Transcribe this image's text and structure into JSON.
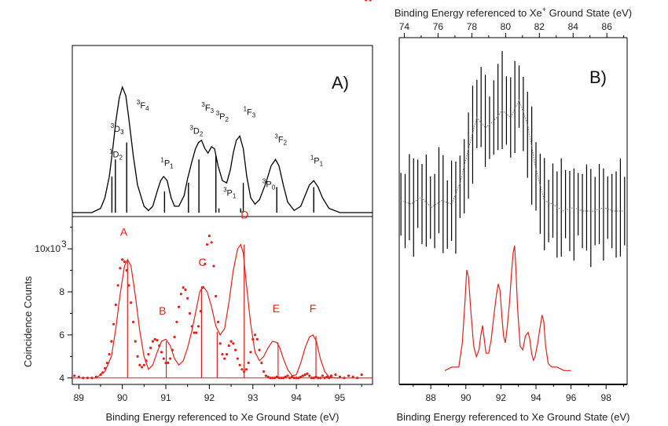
{
  "chart_data": [
    {
      "type": "line",
      "panel_label": "A)",
      "subplot": "top",
      "xlim": [
        88.85,
        95.75
      ],
      "series": [
        {
          "color": "#000000",
          "x": [
            88.85,
            89.3,
            89.5,
            89.6,
            89.7,
            89.78,
            89.85,
            89.93,
            90.0,
            90.08,
            90.15,
            90.25,
            90.35,
            90.5,
            90.6,
            90.7,
            90.8,
            90.88,
            90.95,
            91.03,
            91.12,
            91.2,
            91.3,
            91.42,
            91.5,
            91.6,
            91.68,
            91.75,
            91.82,
            91.9,
            91.97,
            92.05,
            92.12,
            92.2,
            92.3,
            92.4,
            92.48,
            92.55,
            92.62,
            92.7,
            92.78,
            92.86,
            92.95,
            93.05,
            93.15,
            93.3,
            93.42,
            93.52,
            93.6,
            93.7,
            93.8,
            93.95,
            94.1,
            94.2,
            94.3,
            94.4,
            94.5,
            94.6,
            94.75,
            95.0,
            95.3,
            95.75
          ],
          "y": [
            0,
            0,
            0.02,
            0.07,
            0.17,
            0.3,
            0.43,
            0.54,
            0.59,
            0.55,
            0.44,
            0.27,
            0.13,
            0.03,
            0.01,
            0.03,
            0.1,
            0.15,
            0.17,
            0.15,
            0.07,
            0.03,
            0.03,
            0.08,
            0.16,
            0.24,
            0.3,
            0.33,
            0.34,
            0.3,
            0.28,
            0.31,
            0.3,
            0.22,
            0.15,
            0.14,
            0.2,
            0.28,
            0.34,
            0.36,
            0.3,
            0.17,
            0.07,
            0.04,
            0.06,
            0.14,
            0.22,
            0.25,
            0.22,
            0.13,
            0.05,
            0.01,
            0.03,
            0.08,
            0.13,
            0.15,
            0.12,
            0.07,
            0.02,
            0,
            0,
            0
          ]
        }
      ],
      "stick_x": [
        89.76,
        89.84,
        90.1,
        90.97,
        91.52,
        91.76,
        92.15,
        92.22,
        92.72,
        92.78,
        93.55,
        94.4
      ],
      "stick_y": [
        0.17,
        0.25,
        0.33,
        0.1,
        0.14,
        0.25,
        0.27,
        0.02,
        0.02,
        0.14,
        0.12,
        0.12
      ],
      "term_labels": [
        {
          "sup": "1",
          "base": "D",
          "sub": "2",
          "x": 89.7,
          "y": 0.26
        },
        {
          "sup": "3",
          "base": "D",
          "sub": "3",
          "x": 89.73,
          "y": 0.38
        },
        {
          "sup": "3",
          "base": "F",
          "sub": "4",
          "x": 90.33,
          "y": 0.49
        },
        {
          "sup": "1",
          "base": "P",
          "sub": "1",
          "x": 90.88,
          "y": 0.22
        },
        {
          "sup": "3",
          "base": "D",
          "sub": "2",
          "x": 91.55,
          "y": 0.37
        },
        {
          "sup": "3",
          "base": "F",
          "sub": "3",
          "x": 91.82,
          "y": 0.48
        },
        {
          "sup": "3",
          "base": "P",
          "sub": "2",
          "x": 92.15,
          "y": 0.44
        },
        {
          "sup": "3",
          "base": "P",
          "sub": "1",
          "x": 92.32,
          "y": 0.08
        },
        {
          "sup": "1",
          "base": "F",
          "sub": "3",
          "x": 92.78,
          "y": 0.46
        },
        {
          "sup": "3",
          "base": "P",
          "sub": "0",
          "x": 93.22,
          "y": 0.12
        },
        {
          "sup": "3",
          "base": "F",
          "sub": "2",
          "x": 93.5,
          "y": 0.33
        },
        {
          "sup": "1",
          "base": "P",
          "sub": "1",
          "x": 94.32,
          "y": 0.23
        }
      ]
    },
    {
      "type": "scatter",
      "subplot": "bottom",
      "xlabel": "Binding Energy referenced to Xe Ground State (eV)",
      "ylabel": "Coincidence Counts",
      "xlim": [
        88.85,
        95.75
      ],
      "ylim": [
        3700,
        11500
      ],
      "xticks": [
        89,
        90,
        91,
        92,
        93,
        94,
        95
      ],
      "yticks": [
        4000,
        6000,
        8000,
        10000
      ],
      "ytick_labels": [
        "4",
        "6",
        "8",
        "10x10"
      ],
      "ytick_label_superscript": "3",
      "color": "#e3201b",
      "points_x": [
        88.9,
        89.0,
        89.1,
        89.2,
        89.3,
        89.4,
        89.5,
        89.55,
        89.6,
        89.65,
        89.7,
        89.75,
        89.8,
        89.85,
        89.9,
        89.95,
        90.0,
        90.05,
        90.1,
        90.15,
        90.2,
        90.25,
        90.3,
        90.35,
        90.4,
        90.45,
        90.5,
        90.55,
        90.6,
        90.65,
        90.7,
        90.75,
        90.8,
        90.85,
        90.9,
        90.95,
        91.0,
        91.05,
        91.1,
        91.15,
        91.2,
        91.25,
        91.3,
        91.35,
        91.4,
        91.45,
        91.5,
        91.55,
        91.6,
        91.65,
        91.7,
        91.75,
        91.8,
        91.85,
        91.9,
        91.95,
        92.0,
        92.05,
        92.1,
        92.15,
        92.2,
        92.25,
        92.3,
        92.35,
        92.4,
        92.45,
        92.5,
        92.55,
        92.6,
        92.65,
        92.7,
        92.75,
        92.8,
        92.85,
        92.9,
        92.95,
        93.0,
        93.05,
        93.1,
        93.15,
        93.2,
        93.25,
        93.3,
        93.35,
        93.4,
        93.45,
        93.5,
        93.55,
        93.6,
        93.65,
        93.7,
        93.75,
        93.8,
        93.85,
        93.9,
        93.95,
        94.0,
        94.05,
        94.1,
        94.15,
        94.2,
        94.25,
        94.3,
        94.35,
        94.4,
        94.45,
        94.5,
        94.55,
        94.6,
        94.65,
        94.7,
        94.75,
        94.8,
        94.9,
        95.0,
        95.1,
        95.2,
        95.3,
        95.4,
        95.5,
        95.6,
        95.7
      ],
      "points_y": [
        4100,
        4050,
        4000,
        4000,
        4000,
        4050,
        4150,
        4250,
        4450,
        4700,
        5100,
        5700,
        6500,
        7400,
        8300,
        9100,
        9500,
        9400,
        9000,
        8300,
        7500,
        6600,
        5700,
        5000,
        4600,
        4500,
        4600,
        4800,
        5100,
        5400,
        5700,
        5800,
        5750,
        5500,
        5200,
        4900,
        4700,
        4700,
        4900,
        5300,
        5900,
        6600,
        7300,
        7900,
        8200,
        8100,
        7700,
        7000,
        6400,
        6100,
        6100,
        6400,
        7100,
        8200,
        9300,
        10200,
        10600,
        10300,
        9200,
        7800,
        6600,
        5600,
        5100,
        4900,
        5100,
        5500,
        5700,
        5600,
        5300,
        4900,
        4600,
        4400,
        4300,
        4400,
        4700,
        5200,
        5800,
        6000,
        5800,
        5300,
        4700,
        4300,
        4100,
        4050,
        4000,
        4000,
        4000,
        4050,
        4000,
        4000,
        4000,
        4050,
        4100,
        4000,
        4050,
        4000,
        4000,
        4000,
        4050,
        4100,
        4150,
        4200,
        4100,
        4000,
        4000,
        4050,
        4000,
        4000,
        4100,
        4000,
        4050,
        4000,
        4100,
        4150,
        4050,
        4000,
        4100,
        4050,
        4000,
        4150
      ],
      "fit_x": [
        88.85,
        89.4,
        89.6,
        89.75,
        89.85,
        89.95,
        90.05,
        90.12,
        90.2,
        90.3,
        90.4,
        90.5,
        90.6,
        90.7,
        90.8,
        90.9,
        91.0,
        91.1,
        91.2,
        91.3,
        91.4,
        91.5,
        91.6,
        91.7,
        91.78,
        91.86,
        91.95,
        92.05,
        92.15,
        92.25,
        92.35,
        92.45,
        92.55,
        92.65,
        92.72,
        92.78,
        92.85,
        92.95,
        93.05,
        93.15,
        93.25,
        93.35,
        93.45,
        93.55,
        93.62,
        93.7,
        93.8,
        93.9,
        94.0,
        94.1,
        94.2,
        94.3,
        94.38,
        94.46,
        94.55,
        94.65,
        94.75,
        94.9,
        95.1,
        95.75
      ],
      "fit_y": [
        4000,
        4000,
        4300,
        5000,
        6300,
        7900,
        9200,
        9500,
        9200,
        7800,
        6200,
        5000,
        4400,
        4600,
        5200,
        5700,
        5800,
        5500,
        4900,
        4600,
        4800,
        5400,
        6200,
        7200,
        8000,
        8250,
        8000,
        7300,
        6400,
        6000,
        6300,
        7500,
        9000,
        10000,
        10200,
        9800,
        8400,
        6500,
        5200,
        4800,
        5000,
        5400,
        5700,
        5650,
        5400,
        4900,
        4400,
        4100,
        4150,
        4700,
        5400,
        5900,
        6000,
        5700,
        4900,
        4300,
        4050,
        4000,
        4000,
        4000
      ],
      "stick_x": [
        90.12,
        91.01,
        91.82,
        92.18,
        92.8,
        93.58,
        94.45
      ],
      "stick_y": [
        9500,
        5700,
        8250,
        6150,
        10200,
        5650,
        5950
      ],
      "peak_labels": [
        {
          "text": "A",
          "x": 89.95,
          "y": 10600
        },
        {
          "text": "B",
          "x": 90.84,
          "y": 6950
        },
        {
          "text": "C",
          "x": 91.75,
          "y": 9200
        },
        {
          "text": "D",
          "x": 92.72,
          "y": 11400
        },
        {
          "text": "E",
          "x": 93.45,
          "y": 7050
        },
        {
          "text": "F",
          "x": 94.3,
          "y": 7050
        }
      ]
    },
    {
      "type": "line",
      "panel_label": "B)",
      "xlabel": "Binding Energy referenced to Xe Ground State (eV)",
      "x2label": "Binding Energy referenced to Xe",
      "x2label_sup": "+",
      "x2label_rest": " Ground State (eV)",
      "xlim": [
        86.2,
        99.2
      ],
      "xticks": [
        88,
        90,
        92,
        94,
        96,
        98
      ],
      "x2lim": [
        73.7,
        87.2
      ],
      "x2ticks": [
        74,
        76,
        78,
        80,
        82,
        84,
        86
      ],
      "y_scale": "normalized",
      "ylim": [
        0,
        1
      ],
      "noisy_trace": {
        "color": "#000000",
        "x2": [
          73.8,
          74.05,
          74.3,
          74.55,
          74.8,
          75.05,
          75.3,
          75.55,
          75.8,
          76.05,
          76.3,
          76.55,
          76.8,
          77.05,
          77.3,
          77.55,
          77.8,
          78.05,
          78.3,
          78.55,
          78.8,
          79.05,
          79.3,
          79.55,
          79.8,
          80.05,
          80.3,
          80.55,
          80.8,
          81.05,
          81.3,
          81.55,
          81.8,
          82.05,
          82.3,
          82.55,
          82.8,
          83.05,
          83.3,
          83.55,
          83.8,
          84.05,
          84.3,
          84.55,
          84.8,
          85.05,
          85.3,
          85.55,
          85.8,
          86.05,
          86.3,
          86.55,
          86.8,
          87.05
        ],
        "center": [
          0.52,
          0.5,
          0.54,
          0.51,
          0.55,
          0.52,
          0.53,
          0.51,
          0.5,
          0.56,
          0.52,
          0.49,
          0.53,
          0.51,
          0.57,
          0.6,
          0.66,
          0.72,
          0.78,
          0.8,
          0.76,
          0.74,
          0.77,
          0.8,
          0.82,
          0.79,
          0.77,
          0.8,
          0.83,
          0.78,
          0.72,
          0.66,
          0.6,
          0.55,
          0.52,
          0.5,
          0.53,
          0.49,
          0.51,
          0.52,
          0.5,
          0.49,
          0.52,
          0.5,
          0.51,
          0.48,
          0.5,
          0.52,
          0.49,
          0.51,
          0.5,
          0.49,
          0.51,
          0.5
        ],
        "half_range": 0.12
      },
      "smooth_trace": {
        "color": "#6e6e6e",
        "x2": [
          73.8,
          74.4,
          75.0,
          75.6,
          76.2,
          76.8,
          77.3,
          77.8,
          78.3,
          78.8,
          79.3,
          79.8,
          80.3,
          80.8,
          81.3,
          81.8,
          82.3,
          82.8,
          83.4,
          84.0,
          84.6,
          85.2,
          85.8,
          86.4,
          87.05
        ],
        "y": [
          0.53,
          0.52,
          0.54,
          0.51,
          0.53,
          0.52,
          0.58,
          0.68,
          0.77,
          0.74,
          0.76,
          0.79,
          0.77,
          0.82,
          0.75,
          0.62,
          0.53,
          0.52,
          0.5,
          0.51,
          0.5,
          0.5,
          0.51,
          0.5,
          0.5
        ]
      },
      "red_trace": {
        "color": "#e3201b",
        "x": [
          88.8,
          89.2,
          89.6,
          89.8,
          89.95,
          90.05,
          90.15,
          90.3,
          90.45,
          90.6,
          90.75,
          90.85,
          90.95,
          91.05,
          91.15,
          91.3,
          91.45,
          91.6,
          91.75,
          91.85,
          91.95,
          92.05,
          92.15,
          92.25,
          92.35,
          92.5,
          92.6,
          92.7,
          92.78,
          92.85,
          92.95,
          93.1,
          93.25,
          93.4,
          93.55,
          93.65,
          93.75,
          93.85,
          93.95,
          94.1,
          94.25,
          94.35,
          94.45,
          94.55,
          94.7,
          94.9,
          95.2,
          95.6,
          96.0
        ],
        "y": [
          0.04,
          0.05,
          0.05,
          0.12,
          0.24,
          0.33,
          0.31,
          0.2,
          0.11,
          0.08,
          0.1,
          0.14,
          0.17,
          0.13,
          0.09,
          0.09,
          0.13,
          0.2,
          0.26,
          0.29,
          0.27,
          0.2,
          0.14,
          0.12,
          0.16,
          0.24,
          0.32,
          0.38,
          0.4,
          0.34,
          0.22,
          0.11,
          0.1,
          0.14,
          0.15,
          0.13,
          0.09,
          0.07,
          0.08,
          0.12,
          0.17,
          0.2,
          0.18,
          0.11,
          0.06,
          0.05,
          0.05,
          0.04,
          0.04
        ]
      }
    }
  ]
}
